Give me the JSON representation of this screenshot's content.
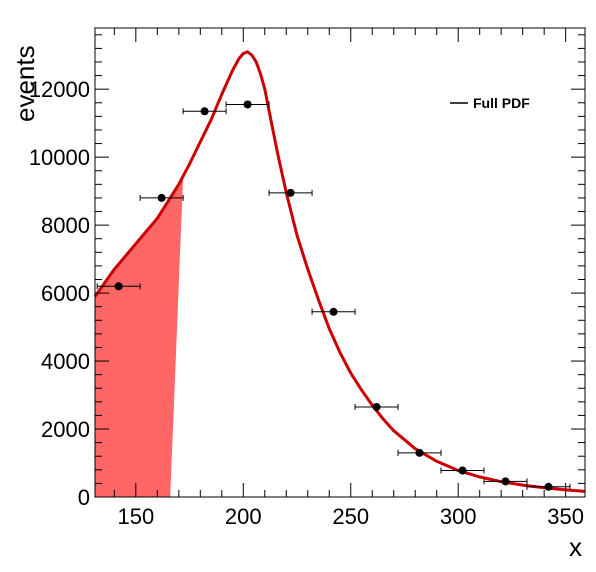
{
  "chart_data": {
    "type": "scatter",
    "title": "",
    "xlabel": "x",
    "ylabel": "events",
    "xlim": [
      131,
      359
    ],
    "ylim": [
      0,
      13800
    ],
    "x_ticks": [
      150,
      200,
      250,
      300,
      350
    ],
    "y_ticks": [
      0,
      2000,
      4000,
      6000,
      8000,
      10000,
      12000
    ],
    "x_tick_labels": [
      "150",
      "200",
      "250",
      "300",
      "350"
    ],
    "y_tick_labels": [
      "0",
      "2000",
      "4000",
      "6000",
      "8000",
      "10000",
      "12000"
    ],
    "grid": false,
    "legend_position": "top-right",
    "colors": {
      "curve": "#cc0000",
      "shade": "#ff6666",
      "points": "#000000",
      "frame": "#000000"
    },
    "series": [
      {
        "name": "",
        "kind": "data-points",
        "x": [
          142,
          162,
          182,
          202,
          222,
          242,
          262,
          282,
          302,
          322,
          342
        ],
        "y": [
          6200,
          8800,
          11350,
          11550,
          8950,
          5450,
          2650,
          1300,
          780,
          460,
          300
        ],
        "xerr": 10
      },
      {
        "name": "Full PDF",
        "kind": "curve",
        "x": [
          131,
          140,
          150,
          160,
          165,
          170,
          175,
          180,
          185,
          190,
          195,
          198,
          200,
          202,
          204,
          206,
          208,
          210,
          213,
          216,
          220,
          225,
          230,
          235,
          240,
          245,
          250,
          255,
          260,
          265,
          270,
          280,
          290,
          300,
          310,
          320,
          330,
          340,
          350,
          359
        ],
        "y": [
          5900,
          6700,
          7450,
          8200,
          8700,
          9200,
          9800,
          10450,
          11100,
          11850,
          12550,
          12900,
          13050,
          13100,
          13000,
          12800,
          12450,
          12000,
          11050,
          10100,
          8950,
          7700,
          6700,
          5800,
          4950,
          4250,
          3650,
          3150,
          2700,
          2300,
          1950,
          1420,
          1050,
          780,
          590,
          450,
          350,
          270,
          210,
          165
        ]
      }
    ],
    "shaded_region": {
      "fill": "#ff6666",
      "upper_edge_x": [
        131,
        140,
        150,
        160,
        165,
        170,
        172
      ],
      "upper_edge_y": [
        5900,
        6700,
        7450,
        8200,
        8700,
        9200,
        9400
      ],
      "bottom_x_range": [
        131,
        166
      ]
    }
  }
}
